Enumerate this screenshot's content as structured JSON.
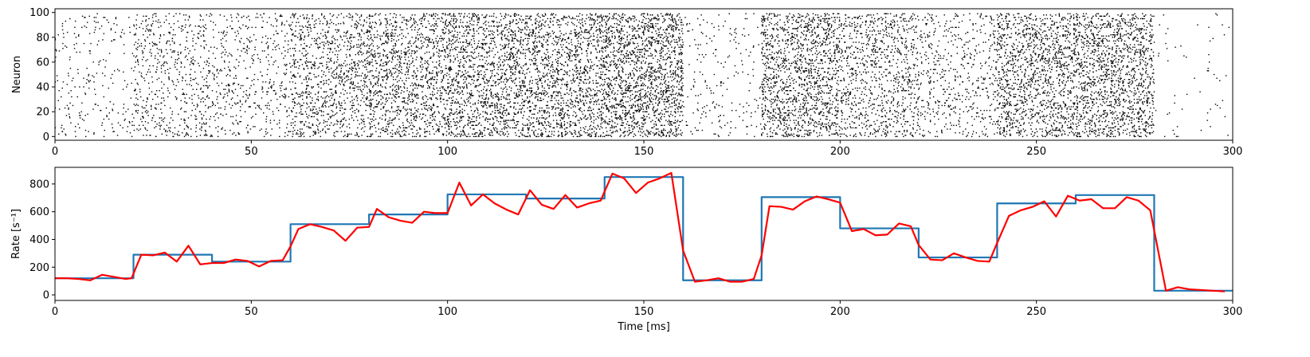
{
  "chart_data": [
    {
      "type": "scatter",
      "xlabel": "",
      "ylabel": "Neuron",
      "xlim": [
        0,
        300
      ],
      "ylim": [
        -3,
        103
      ],
      "xticks": [
        "0",
        "50",
        "100",
        "150",
        "200",
        "250",
        "300"
      ],
      "yticks": [
        "0",
        "20",
        "40",
        "60",
        "80",
        "100"
      ],
      "marker_color": "#000000",
      "neurons": 100,
      "segments": [
        {
          "t0": 0,
          "t1": 20,
          "rate": 120
        },
        {
          "t0": 20,
          "t1": 40,
          "rate": 290
        },
        {
          "t0": 40,
          "t1": 60,
          "rate": 240
        },
        {
          "t0": 60,
          "t1": 80,
          "rate": 510
        },
        {
          "t0": 80,
          "t1": 100,
          "rate": 580
        },
        {
          "t0": 100,
          "t1": 120,
          "rate": 725
        },
        {
          "t0": 120,
          "t1": 140,
          "rate": 695
        },
        {
          "t0": 140,
          "t1": 160,
          "rate": 850
        },
        {
          "t0": 160,
          "t1": 180,
          "rate": 105
        },
        {
          "t0": 180,
          "t1": 200,
          "rate": 705
        },
        {
          "t0": 200,
          "t1": 220,
          "rate": 480
        },
        {
          "t0": 220,
          "t1": 240,
          "rate": 270
        },
        {
          "t0": 240,
          "t1": 260,
          "rate": 660
        },
        {
          "t0": 260,
          "t1": 280,
          "rate": 720
        },
        {
          "t0": 280,
          "t1": 300,
          "rate": 30
        }
      ]
    },
    {
      "type": "line",
      "xlabel": "Time [ms]",
      "ylabel": "Rate [s⁻¹]",
      "xlim": [
        0,
        300
      ],
      "ylim": [
        -40,
        920
      ],
      "xticks": [
        "0",
        "50",
        "100",
        "150",
        "200",
        "250",
        "300"
      ],
      "yticks": [
        "0",
        "200",
        "400",
        "600",
        "800"
      ],
      "series": [
        {
          "color": "#1f77b4",
          "drawstyle": "steps-post",
          "x": [
            0,
            20,
            40,
            60,
            80,
            100,
            120,
            140,
            160,
            180,
            200,
            220,
            240,
            260,
            280,
            300
          ],
          "y": [
            120,
            290,
            240,
            510,
            580,
            725,
            695,
            850,
            105,
            705,
            480,
            270,
            660,
            720,
            30,
            30
          ]
        },
        {
          "color": "#ff0000",
          "x": [
            0,
            3,
            6,
            9,
            12,
            15,
            18,
            19.5,
            22,
            25,
            28,
            31,
            34,
            37,
            40,
            43,
            46,
            49,
            52,
            55,
            58,
            60,
            62,
            65,
            68,
            71,
            74,
            77,
            80,
            82,
            85,
            88,
            91,
            94,
            97,
            100,
            103,
            106,
            109,
            112,
            115,
            118,
            121,
            124,
            127,
            130,
            133,
            136,
            139,
            142,
            145,
            148,
            151,
            154,
            157,
            160,
            163,
            166,
            169,
            172,
            175,
            178,
            180,
            182,
            185,
            188,
            191,
            194,
            197,
            200,
            203,
            206,
            209,
            212,
            215,
            218,
            220,
            223,
            226,
            229,
            232,
            235,
            238,
            240,
            243,
            246,
            249,
            252,
            255,
            258,
            261,
            264,
            267,
            270,
            273,
            276,
            279,
            283,
            286,
            289,
            292,
            295,
            298
          ],
          "y": [
            120,
            120,
            115,
            105,
            145,
            130,
            115,
            120,
            290,
            285,
            305,
            240,
            355,
            220,
            230,
            230,
            255,
            245,
            205,
            245,
            250,
            350,
            475,
            510,
            490,
            465,
            390,
            485,
            490,
            620,
            560,
            535,
            520,
            600,
            590,
            590,
            810,
            645,
            725,
            660,
            615,
            580,
            755,
            650,
            620,
            720,
            630,
            660,
            680,
            875,
            840,
            735,
            810,
            840,
            880,
            320,
            95,
            105,
            120,
            95,
            95,
            115,
            285,
            640,
            635,
            615,
            675,
            710,
            690,
            665,
            460,
            475,
            430,
            435,
            515,
            495,
            360,
            255,
            250,
            300,
            270,
            245,
            240,
            375,
            570,
            610,
            635,
            675,
            565,
            715,
            680,
            690,
            625,
            625,
            705,
            680,
            610,
            30,
            55,
            40,
            35,
            30,
            25
          ]
        }
      ]
    }
  ]
}
